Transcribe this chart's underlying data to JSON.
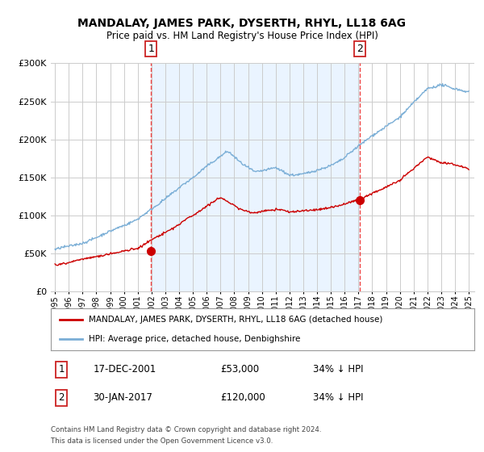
{
  "title": "MANDALAY, JAMES PARK, DYSERTH, RHYL, LL18 6AG",
  "subtitle": "Price paid vs. HM Land Registry's House Price Index (HPI)",
  "legend_label_red": "MANDALAY, JAMES PARK, DYSERTH, RHYL, LL18 6AG (detached house)",
  "legend_label_blue": "HPI: Average price, detached house, Denbighshire",
  "annotation1_label": "1",
  "annotation1_date": "17-DEC-2001",
  "annotation1_price": "£53,000",
  "annotation1_hpi": "34% ↓ HPI",
  "annotation2_label": "2",
  "annotation2_date": "30-JAN-2017",
  "annotation2_price": "£120,000",
  "annotation2_hpi": "34% ↓ HPI",
  "footer1": "Contains HM Land Registry data © Crown copyright and database right 2024.",
  "footer2": "This data is licensed under the Open Government Licence v3.0.",
  "red_color": "#cc0000",
  "blue_color": "#7aaed6",
  "blue_fill_color": "#ddeeff",
  "vline_color": "#ee4444",
  "background_color": "#ffffff",
  "grid_color": "#cccccc",
  "ylim": [
    0,
    300000
  ],
  "yticks": [
    0,
    50000,
    100000,
    150000,
    200000,
    250000,
    300000
  ],
  "sale1_x": 2001.96,
  "sale1_y": 53000,
  "sale2_x": 2017.08,
  "sale2_y": 120000,
  "xmin": 1994.7,
  "xmax": 2025.4
}
